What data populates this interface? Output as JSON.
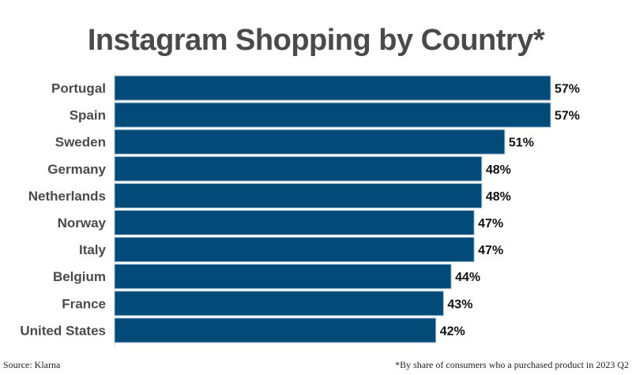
{
  "chart_data": {
    "type": "bar",
    "orientation": "horizontal",
    "title": "Instagram Shopping by Country*",
    "categories": [
      "Portugal",
      "Spain",
      "Sweden",
      "Germany",
      "Netherlands",
      "Norway",
      "Italy",
      "Belgium",
      "France",
      "United States"
    ],
    "values": [
      57,
      57,
      51,
      48,
      48,
      47,
      47,
      44,
      43,
      42
    ],
    "value_labels": [
      "57%",
      "57%",
      "51%",
      "48%",
      "48%",
      "47%",
      "47%",
      "44%",
      "43%",
      "42%"
    ],
    "xlim": [
      0,
      57
    ],
    "grid": false,
    "bar_color": "#024a78"
  },
  "footer": {
    "source": "Source: Klarna",
    "note": "*By share of consumers who a purchased product in 2023 Q2"
  }
}
